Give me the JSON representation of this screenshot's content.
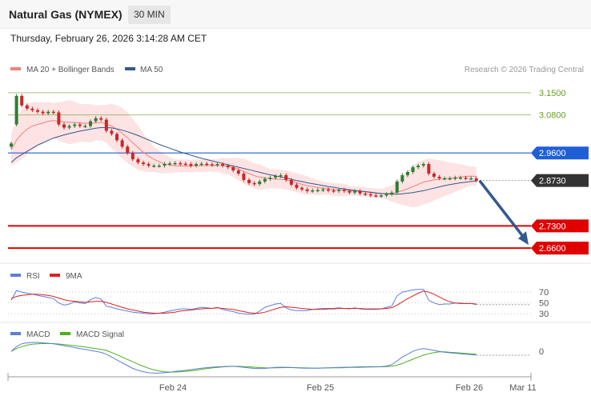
{
  "header": {
    "instrument": "Natural Gas (NYMEX)",
    "timeframe": "30 MIN"
  },
  "datetime": "Thursday, February 26, 2026 3:14:28 AM CET",
  "colors": {
    "resistance": "#6b9e1f",
    "pivot": "#1f5fd6",
    "support": "#e00000",
    "last": "#333333",
    "ma20": "#f08080",
    "ma50": "#33588f",
    "bollinger": "#fde0e0",
    "candle_up": "#2e7d32",
    "candle_down": "#c62828",
    "rsi": "#5b7fd6",
    "rsi_ma": "#dd2222",
    "macd": "#5b7fd6",
    "macd_signal": "#4caf20",
    "arrow": "#33588f"
  },
  "chart_data": [
    {
      "type": "candlestick",
      "legend": [
        {
          "name": "MA 20 + Bollinger Bands",
          "color": "#f08080"
        },
        {
          "name": "MA 50",
          "color": "#33588f"
        }
      ],
      "credit": "Research © 2026 Trading Central",
      "ylim": [
        2.64,
        3.17
      ],
      "x_ticks": [
        "Feb 24",
        "Feb 25",
        "Feb 26",
        "Mar 11"
      ],
      "levels": [
        {
          "value": 3.15,
          "label": "3.1500",
          "kind": "resistance"
        },
        {
          "value": 3.08,
          "label": "3.0800",
          "kind": "resistance"
        },
        {
          "value": 2.96,
          "label": "2.9600",
          "kind": "pivot"
        },
        {
          "value": 2.873,
          "label": "2.8730",
          "kind": "last"
        },
        {
          "value": 2.73,
          "label": "2.7300",
          "kind": "support"
        },
        {
          "value": 2.66,
          "label": "2.6600",
          "kind": "support"
        }
      ],
      "close": [
        2.99,
        3.14,
        3.11,
        3.1,
        3.095,
        3.09,
        3.085,
        3.09,
        3.088,
        3.05,
        3.04,
        3.045,
        3.05,
        3.045,
        3.045,
        3.06,
        3.07,
        3.065,
        3.03,
        3.02,
        3.0,
        2.98,
        2.96,
        2.94,
        2.93,
        2.925,
        2.92,
        2.92,
        2.92,
        2.925,
        2.927,
        2.928,
        2.926,
        2.925,
        2.92,
        2.925,
        2.926,
        2.924,
        2.922,
        2.925,
        2.92,
        2.915,
        2.905,
        2.895,
        2.875,
        2.865,
        2.862,
        2.87,
        2.878,
        2.882,
        2.887,
        2.89,
        2.875,
        2.86,
        2.85,
        2.845,
        2.84,
        2.842,
        2.843,
        2.845,
        2.842,
        2.84,
        2.844,
        2.84,
        2.835,
        2.84,
        2.832,
        2.83,
        2.826,
        2.825,
        2.826,
        2.83,
        2.835,
        2.87,
        2.89,
        2.9,
        2.915,
        2.92,
        2.925,
        2.895,
        2.885,
        2.88,
        2.88,
        2.88,
        2.882,
        2.882,
        2.88,
        2.88,
        2.873
      ],
      "open": [
        2.98,
        3.05,
        3.14,
        3.11,
        3.1,
        3.095,
        3.09,
        3.085,
        3.09,
        3.088,
        3.05,
        3.04,
        3.045,
        3.05,
        3.045,
        3.045,
        3.06,
        3.07,
        3.065,
        3.03,
        3.02,
        3.0,
        2.98,
        2.96,
        2.94,
        2.93,
        2.925,
        2.92,
        2.92,
        2.92,
        2.925,
        2.927,
        2.928,
        2.926,
        2.925,
        2.92,
        2.925,
        2.926,
        2.924,
        2.922,
        2.925,
        2.92,
        2.915,
        2.905,
        2.895,
        2.875,
        2.865,
        2.862,
        2.87,
        2.878,
        2.882,
        2.887,
        2.89,
        2.875,
        2.86,
        2.85,
        2.845,
        2.84,
        2.842,
        2.843,
        2.845,
        2.842,
        2.84,
        2.844,
        2.84,
        2.835,
        2.84,
        2.832,
        2.83,
        2.826,
        2.825,
        2.826,
        2.83,
        2.835,
        2.87,
        2.89,
        2.9,
        2.915,
        2.92,
        2.925,
        2.895,
        2.885,
        2.88,
        2.88,
        2.88,
        2.882,
        2.882,
        2.88,
        2.88
      ],
      "ma20": [
        2.97,
        3.0,
        3.02,
        3.035,
        3.045,
        3.05,
        3.055,
        3.06,
        3.062,
        3.06,
        3.058,
        3.057,
        3.056,
        3.055,
        3.054,
        3.054,
        3.055,
        3.056,
        3.052,
        3.045,
        3.035,
        3.022,
        3.008,
        2.992,
        2.977,
        2.962,
        2.95,
        2.94,
        2.932,
        2.926,
        2.922,
        2.92,
        2.919,
        2.919,
        2.919,
        2.92,
        2.92,
        2.921,
        2.921,
        2.921,
        2.92,
        2.918,
        2.914,
        2.909,
        2.902,
        2.895,
        2.888,
        2.884,
        2.881,
        2.879,
        2.878,
        2.877,
        2.875,
        2.871,
        2.866,
        2.861,
        2.857,
        2.854,
        2.851,
        2.849,
        2.847,
        2.845,
        2.844,
        2.843,
        2.841,
        2.84,
        2.839,
        2.837,
        2.835,
        2.833,
        2.832,
        2.832,
        2.832,
        2.836,
        2.841,
        2.847,
        2.854,
        2.861,
        2.868,
        2.872,
        2.875,
        2.877,
        2.879,
        2.88,
        2.882,
        2.884,
        2.886,
        2.887,
        2.886
      ],
      "ma50": [
        2.93,
        2.945,
        2.955,
        2.965,
        2.975,
        2.985,
        2.992,
        3.0,
        3.007,
        3.012,
        3.017,
        3.021,
        3.025,
        3.029,
        3.032,
        3.035,
        3.038,
        3.04,
        3.04,
        3.039,
        3.036,
        3.032,
        3.027,
        3.021,
        3.015,
        3.008,
        3.001,
        2.994,
        2.987,
        2.981,
        2.975,
        2.969,
        2.963,
        2.958,
        2.953,
        2.948,
        2.943,
        2.939,
        2.935,
        2.931,
        2.927,
        2.923,
        2.919,
        2.915,
        2.911,
        2.907,
        2.903,
        2.899,
        2.895,
        2.891,
        2.888,
        2.884,
        2.881,
        2.877,
        2.873,
        2.87,
        2.866,
        2.863,
        2.86,
        2.857,
        2.854,
        2.852,
        2.849,
        2.847,
        2.844,
        2.842,
        2.84,
        2.838,
        2.836,
        2.834,
        2.832,
        2.831,
        2.83,
        2.83,
        2.831,
        2.833,
        2.835,
        2.838,
        2.841,
        2.845,
        2.849,
        2.853,
        2.857,
        2.86,
        2.863,
        2.866,
        2.868,
        2.87,
        2.872
      ],
      "band_width": [
        0.05,
        0.07,
        0.08,
        0.08,
        0.075,
        0.07,
        0.065,
        0.06,
        0.055,
        0.06,
        0.065,
        0.07,
        0.065,
        0.06,
        0.06,
        0.06,
        0.055,
        0.055,
        0.06,
        0.07,
        0.075,
        0.08,
        0.08,
        0.075,
        0.07,
        0.06,
        0.05,
        0.04,
        0.035,
        0.03,
        0.025,
        0.02,
        0.02,
        0.02,
        0.02,
        0.02,
        0.02,
        0.02,
        0.02,
        0.02,
        0.025,
        0.025,
        0.03,
        0.035,
        0.04,
        0.04,
        0.04,
        0.04,
        0.035,
        0.03,
        0.03,
        0.03,
        0.03,
        0.03,
        0.03,
        0.03,
        0.03,
        0.025,
        0.025,
        0.02,
        0.02,
        0.02,
        0.02,
        0.02,
        0.015,
        0.015,
        0.015,
        0.015,
        0.015,
        0.015,
        0.015,
        0.02,
        0.025,
        0.035,
        0.045,
        0.055,
        0.065,
        0.07,
        0.07,
        0.07,
        0.065,
        0.06,
        0.055,
        0.05,
        0.045,
        0.04,
        0.035,
        0.03,
        0.03
      ],
      "projection": {
        "from": 2.873,
        "to": 2.66
      }
    },
    {
      "type": "line",
      "legend": [
        {
          "name": "RSI",
          "color": "#5b7fd6"
        },
        {
          "name": "9MA",
          "color": "#dd2222"
        }
      ],
      "ylim": [
        20,
        82
      ],
      "reference_levels": [
        70,
        50,
        30
      ],
      "rsi": [
        55,
        73,
        70,
        68,
        66,
        64,
        62,
        60,
        58,
        50,
        46,
        48,
        52,
        50,
        49,
        56,
        60,
        57,
        44,
        42,
        39,
        37,
        35,
        33,
        32,
        31,
        30,
        30,
        31,
        33,
        35,
        37,
        39,
        39,
        38,
        40,
        42,
        41,
        40,
        42,
        38,
        36,
        34,
        31,
        30,
        29,
        29,
        35,
        42,
        45,
        48,
        49,
        41,
        37,
        36,
        36,
        36,
        38,
        39,
        40,
        40,
        40,
        41,
        40,
        39,
        41,
        39,
        38,
        38,
        38,
        39,
        42,
        44,
        63,
        70,
        72,
        74,
        75,
        75,
        55,
        50,
        47,
        48,
        48,
        50,
        50,
        49,
        49,
        47
      ],
      "rsi_ma": [
        58,
        62,
        64,
        65,
        66,
        66,
        65,
        64,
        62,
        59,
        56,
        54,
        53,
        52,
        51,
        52,
        53,
        53,
        51,
        48,
        45,
        42,
        39,
        37,
        35,
        33,
        32,
        31,
        31,
        31,
        32,
        33,
        35,
        36,
        37,
        38,
        39,
        40,
        40,
        41,
        40,
        39,
        38,
        36,
        34,
        32,
        31,
        31,
        33,
        36,
        39,
        42,
        43,
        42,
        41,
        40,
        39,
        38,
        38,
        38,
        39,
        39,
        40,
        40,
        40,
        40,
        40,
        39,
        39,
        39,
        39,
        40,
        41,
        46,
        52,
        58,
        63,
        68,
        72,
        70,
        66,
        61,
        56,
        52,
        50,
        49,
        49,
        49,
        48
      ]
    },
    {
      "type": "line",
      "legend": [
        {
          "name": "MACD",
          "color": "#5b7fd6"
        },
        {
          "name": "MACD Signal",
          "color": "#4caf20"
        }
      ],
      "ylim": [
        -0.026,
        0.012
      ],
      "reference_levels": [
        0
      ],
      "y_tick_labels": [
        "0"
      ],
      "macd": [
        0.0,
        0.005,
        0.008,
        0.009,
        0.0095,
        0.0095,
        0.009,
        0.0085,
        0.008,
        0.007,
        0.006,
        0.005,
        0.004,
        0.003,
        0.002,
        0.001,
        0.0,
        -0.001,
        -0.003,
        -0.006,
        -0.009,
        -0.012,
        -0.015,
        -0.018,
        -0.02,
        -0.0215,
        -0.0225,
        -0.023,
        -0.023,
        -0.0225,
        -0.022,
        -0.0212,
        -0.0205,
        -0.02,
        -0.0193,
        -0.0185,
        -0.0178,
        -0.0172,
        -0.0167,
        -0.0163,
        -0.016,
        -0.0158,
        -0.0158,
        -0.0162,
        -0.0168,
        -0.0175,
        -0.018,
        -0.0182,
        -0.018,
        -0.0175,
        -0.017,
        -0.0167,
        -0.0168,
        -0.017,
        -0.0173,
        -0.0176,
        -0.0178,
        -0.0178,
        -0.0177,
        -0.0175,
        -0.0173,
        -0.0171,
        -0.017,
        -0.0168,
        -0.0167,
        -0.0165,
        -0.0163,
        -0.0162,
        -0.0162,
        -0.0162,
        -0.016,
        -0.0155,
        -0.014,
        -0.01,
        -0.006,
        -0.003,
        0.0,
        0.002,
        0.003,
        0.002,
        0.001,
        0.0,
        -0.001,
        -0.0015,
        -0.002,
        -0.0025,
        -0.003,
        -0.0035,
        -0.004
      ],
      "macd_signal": [
        0.0,
        0.003,
        0.005,
        0.0065,
        0.0075,
        0.008,
        0.0082,
        0.0083,
        0.0082,
        0.0078,
        0.0072,
        0.0066,
        0.006,
        0.0053,
        0.0046,
        0.0038,
        0.003,
        0.0021,
        0.001,
        -0.0012,
        -0.0035,
        -0.006,
        -0.0085,
        -0.011,
        -0.0135,
        -0.0158,
        -0.0178,
        -0.0195,
        -0.0207,
        -0.0215,
        -0.0218,
        -0.0218,
        -0.0215,
        -0.021,
        -0.0205,
        -0.0198,
        -0.019,
        -0.0182,
        -0.0175,
        -0.0169,
        -0.0164,
        -0.016,
        -0.0158,
        -0.0158,
        -0.016,
        -0.0163,
        -0.0167,
        -0.0171,
        -0.0174,
        -0.0175,
        -0.0174,
        -0.0172,
        -0.0171,
        -0.0171,
        -0.0172,
        -0.0173,
        -0.0175,
        -0.0176,
        -0.0176,
        -0.0176,
        -0.0175,
        -0.0174,
        -0.0173,
        -0.0172,
        -0.017,
        -0.0169,
        -0.0168,
        -0.0166,
        -0.0165,
        -0.0164,
        -0.0163,
        -0.0161,
        -0.0157,
        -0.0145,
        -0.0128,
        -0.0105,
        -0.0083,
        -0.006,
        -0.004,
        -0.0025,
        -0.0013,
        -0.0005,
        -0.0005,
        -0.001,
        -0.0013,
        -0.0017,
        -0.0021,
        -0.0025,
        -0.003
      ]
    }
  ]
}
